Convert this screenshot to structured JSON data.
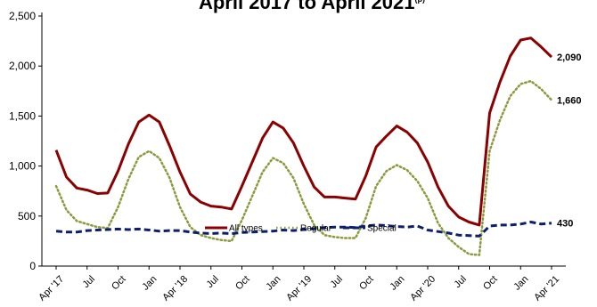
{
  "chart_data": {
    "type": "line",
    "title": "April 2017 to April 2021",
    "title_superscript": "(p)",
    "xlabel": "",
    "ylabel": "",
    "ylim": [
      0,
      2500
    ],
    "yticks": [
      0,
      500,
      1000,
      1500,
      2000,
      2500
    ],
    "ytick_labels": [
      "0",
      "500",
      "1,000",
      "1,500",
      "2,000",
      "2,500"
    ],
    "x": [
      "Apr '17",
      "May '17",
      "Jun '17",
      "Jul '17",
      "Aug '17",
      "Sep '17",
      "Oct '17",
      "Nov '17",
      "Dec '17",
      "Jan '18",
      "Feb '18",
      "Mar '18",
      "Apr '18",
      "May '18",
      "Jun '18",
      "Jul '18",
      "Aug '18",
      "Sep '18",
      "Oct '18",
      "Nov '18",
      "Dec '18",
      "Jan '19",
      "Feb '19",
      "Mar '19",
      "Apr '19",
      "May '19",
      "Jun '19",
      "Jul '19",
      "Aug '19",
      "Sep '19",
      "Oct '19",
      "Nov '19",
      "Dec '19",
      "Jan '20",
      "Feb '20",
      "Mar '20",
      "Apr '20",
      "May '20",
      "Jun '20",
      "Jul '20",
      "Aug '20",
      "Sep '20",
      "Oct '20",
      "Nov '20",
      "Dec '20",
      "Jan '21",
      "Feb '21",
      "Mar '21",
      "Apr '21"
    ],
    "xtick_labels": [
      {
        "index": 0,
        "label": "Apr '17"
      },
      {
        "index": 3,
        "label": "Jul"
      },
      {
        "index": 6,
        "label": "Oct"
      },
      {
        "index": 9,
        "label": "Jan"
      },
      {
        "index": 12,
        "label": "Apr '18"
      },
      {
        "index": 15,
        "label": "Jul"
      },
      {
        "index": 18,
        "label": "Oct"
      },
      {
        "index": 21,
        "label": "Jan"
      },
      {
        "index": 24,
        "label": "Apr '19"
      },
      {
        "index": 27,
        "label": "Jul"
      },
      {
        "index": 30,
        "label": "Oct"
      },
      {
        "index": 33,
        "label": "Jan"
      },
      {
        "index": 36,
        "label": "Apr '20"
      },
      {
        "index": 39,
        "label": "Jul"
      },
      {
        "index": 42,
        "label": "Oct"
      },
      {
        "index": 45,
        "label": "Jan"
      },
      {
        "index": 48,
        "label": "Apr '21"
      }
    ],
    "series": [
      {
        "name": "All types",
        "color": "#8b0000",
        "style": "solid",
        "values": [
          1160,
          890,
          780,
          760,
          725,
          730,
          950,
          1220,
          1440,
          1510,
          1440,
          1200,
          940,
          720,
          640,
          600,
          590,
          570,
          800,
          1040,
          1280,
          1440,
          1380,
          1230,
          1000,
          790,
          690,
          690,
          680,
          670,
          900,
          1190,
          1300,
          1400,
          1340,
          1230,
          1040,
          790,
          600,
          490,
          440,
          410,
          1530,
          1840,
          2100,
          2260,
          2280,
          2190,
          2090
        ],
        "end_label": "2,090"
      },
      {
        "name": "Regular",
        "color": "#8a9a3c",
        "style": "dotted",
        "values": [
          800,
          560,
          450,
          420,
          390,
          380,
          590,
          870,
          1090,
          1150,
          1080,
          880,
          590,
          390,
          310,
          280,
          260,
          250,
          460,
          700,
          940,
          1080,
          1030,
          880,
          620,
          410,
          310,
          290,
          280,
          280,
          480,
          800,
          950,
          1010,
          960,
          850,
          680,
          430,
          280,
          190,
          120,
          110,
          1150,
          1460,
          1700,
          1820,
          1850,
          1770,
          1660
        ],
        "end_label": "1,660"
      },
      {
        "name": "Special",
        "color": "#0b1f6e",
        "style": "dashed",
        "values": [
          350,
          340,
          340,
          355,
          360,
          365,
          370,
          365,
          370,
          360,
          350,
          355,
          355,
          340,
          330,
          325,
          330,
          325,
          335,
          340,
          345,
          350,
          360,
          355,
          365,
          375,
          385,
          390,
          390,
          385,
          400,
          410,
          405,
          395,
          390,
          400,
          360,
          345,
          330,
          310,
          305,
          300,
          400,
          410,
          410,
          420,
          440,
          420,
          430
        ],
        "end_label": "430"
      }
    ],
    "legend": {
      "placement": "bottom-center",
      "entries": [
        "All types",
        "Regular",
        "Special"
      ]
    },
    "grid": false
  }
}
